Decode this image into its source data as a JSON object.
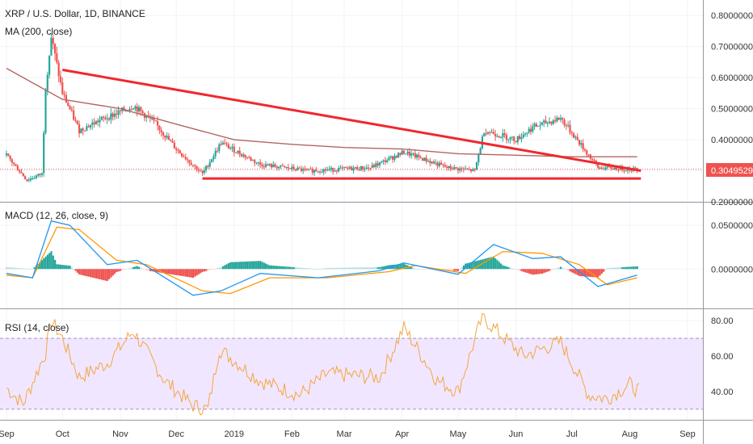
{
  "colors": {
    "up": "#26a69a",
    "down": "#ef5350",
    "ma": "#b5645f",
    "trend": "#f0282d",
    "price_tag": "#ef5350",
    "macd_line": "#2196f3",
    "signal_line": "#ff9800",
    "rsi_line": "#f3a642",
    "rsi_band": "#f1e6ff",
    "rsi_border": "#a890c8"
  },
  "legend": {
    "title": "XRP / U.S. Dollar, 1D, BINANCE",
    "ma": "MA (200, close)",
    "macd": "MACD (12, 26, close, 9)",
    "rsi": "RSI (14, close)"
  },
  "price_tag": "0.3049529",
  "chart_data": [
    {
      "type": "candlestick",
      "title": "XRP / U.S. Dollar, 1D, BINANCE",
      "ylim": [
        0.2,
        0.85
      ],
      "yticks": [
        "0.2000000",
        "0.3000000",
        "0.4000000",
        "0.5000000",
        "0.6000000",
        "0.7000000",
        "0.8000000"
      ],
      "x_labels": [
        "Sep",
        "Oct",
        "Nov",
        "Dec",
        "2019",
        "Feb",
        "Mar",
        "Apr",
        "May",
        "Jun",
        "Jul",
        "Aug",
        "Sep"
      ],
      "approx_close_path": [
        [
          "2018-09-01",
          0.35
        ],
        [
          "2018-09-12",
          0.27
        ],
        [
          "2018-09-20",
          0.29
        ],
        [
          "2018-09-22",
          0.57
        ],
        [
          "2018-09-25",
          0.73
        ],
        [
          "2018-10-01",
          0.55
        ],
        [
          "2018-10-10",
          0.43
        ],
        [
          "2018-10-20",
          0.46
        ],
        [
          "2018-11-05",
          0.5
        ],
        [
          "2018-11-08",
          0.51
        ],
        [
          "2018-11-20",
          0.45
        ],
        [
          "2018-12-01",
          0.37
        ],
        [
          "2018-12-15",
          0.29
        ],
        [
          "2018-12-25",
          0.39
        ],
        [
          "2019-01-15",
          0.32
        ],
        [
          "2019-02-10",
          0.3
        ],
        [
          "2019-03-15",
          0.31
        ],
        [
          "2019-04-02",
          0.36
        ],
        [
          "2019-04-25",
          0.31
        ],
        [
          "2019-05-10",
          0.3
        ],
        [
          "2019-05-15",
          0.43
        ],
        [
          "2019-06-01",
          0.4
        ],
        [
          "2019-06-10",
          0.44
        ],
        [
          "2019-06-25",
          0.47
        ],
        [
          "2019-07-05",
          0.39
        ],
        [
          "2019-07-15",
          0.31
        ],
        [
          "2019-08-05",
          0.305
        ]
      ],
      "ma200_path": [
        [
          "2018-09-01",
          0.63
        ],
        [
          "2018-10-01",
          0.53
        ],
        [
          "2018-11-01",
          0.5
        ],
        [
          "2018-12-01",
          0.45
        ],
        [
          "2019-01-01",
          0.4
        ],
        [
          "2019-02-01",
          0.385
        ],
        [
          "2019-03-01",
          0.375
        ],
        [
          "2019-04-01",
          0.37
        ],
        [
          "2019-05-01",
          0.355
        ],
        [
          "2019-06-01",
          0.35
        ],
        [
          "2019-07-01",
          0.345
        ],
        [
          "2019-08-05",
          0.345
        ]
      ],
      "trendlines": [
        {
          "from": [
            "2018-10-01",
            0.625
          ],
          "to": [
            "2019-08-07",
            0.3
          ]
        },
        {
          "from": [
            "2018-12-15",
            0.275
          ],
          "to": [
            "2019-08-07",
            0.275
          ]
        }
      ],
      "last_price": 0.3049529
    },
    {
      "type": "macd",
      "title": "MACD (12, 26, close, 9)",
      "ylim": [
        -0.045,
        0.075
      ],
      "yticks": [
        "0.0000000",
        "0.0500000"
      ],
      "macd_path": [
        [
          "2018-09-01",
          -0.005
        ],
        [
          "2018-09-15",
          -0.01
        ],
        [
          "2018-09-25",
          0.055
        ],
        [
          "2018-10-05",
          0.05
        ],
        [
          "2018-10-25",
          0.005
        ],
        [
          "2018-11-10",
          0.01
        ],
        [
          "2018-12-10",
          -0.03
        ],
        [
          "2018-12-25",
          -0.025
        ],
        [
          "2019-01-15",
          -0.005
        ],
        [
          "2019-02-15",
          -0.01
        ],
        [
          "2019-03-20",
          -0.002
        ],
        [
          "2019-04-02",
          0.007
        ],
        [
          "2019-05-01",
          -0.006
        ],
        [
          "2019-05-20",
          0.028
        ],
        [
          "2019-06-10",
          0.012
        ],
        [
          "2019-06-25",
          0.014
        ],
        [
          "2019-07-15",
          -0.02
        ],
        [
          "2019-08-05",
          -0.007
        ]
      ],
      "signal_path": [
        [
          "2018-09-01",
          -0.007
        ],
        [
          "2018-09-15",
          -0.01
        ],
        [
          "2018-09-28",
          0.048
        ],
        [
          "2018-10-10",
          0.045
        ],
        [
          "2018-10-30",
          0.01
        ],
        [
          "2018-11-15",
          0.005
        ],
        [
          "2018-12-15",
          -0.025
        ],
        [
          "2018-12-30",
          -0.028
        ],
        [
          "2019-01-20",
          -0.01
        ],
        [
          "2019-02-20",
          -0.01
        ],
        [
          "2019-03-25",
          -0.003
        ],
        [
          "2019-04-08",
          0.004
        ],
        [
          "2019-05-05",
          -0.005
        ],
        [
          "2019-05-25",
          0.02
        ],
        [
          "2019-06-15",
          0.018
        ],
        [
          "2019-07-05",
          0.005
        ],
        [
          "2019-07-20",
          -0.018
        ],
        [
          "2019-08-05",
          -0.01
        ]
      ]
    },
    {
      "type": "rsi",
      "title": "RSI (14, close)",
      "ylim": [
        24,
        86
      ],
      "yticks": [
        "40.00",
        "60.00",
        "80.00"
      ],
      "band": [
        30,
        70
      ],
      "rsi_path": [
        [
          "2018-09-01",
          42
        ],
        [
          "2018-09-10",
          33
        ],
        [
          "2018-09-22",
          62
        ],
        [
          "2018-09-25",
          80
        ],
        [
          "2018-10-01",
          70
        ],
        [
          "2018-10-10",
          48
        ],
        [
          "2018-10-25",
          56
        ],
        [
          "2018-11-08",
          74
        ],
        [
          "2018-11-25",
          46
        ],
        [
          "2018-12-10",
          32
        ],
        [
          "2018-12-18",
          30
        ],
        [
          "2018-12-24",
          64
        ],
        [
          "2019-01-15",
          46
        ],
        [
          "2019-02-05",
          38
        ],
        [
          "2019-02-20",
          50
        ],
        [
          "2019-03-20",
          48
        ],
        [
          "2019-04-02",
          76
        ],
        [
          "2019-04-20",
          46
        ],
        [
          "2019-05-01",
          40
        ],
        [
          "2019-05-14",
          82
        ],
        [
          "2019-06-05",
          60
        ],
        [
          "2019-06-25",
          68
        ],
        [
          "2019-07-10",
          38
        ],
        [
          "2019-07-20",
          36
        ],
        [
          "2019-08-01",
          44
        ],
        [
          "2019-08-06",
          40
        ]
      ]
    }
  ]
}
